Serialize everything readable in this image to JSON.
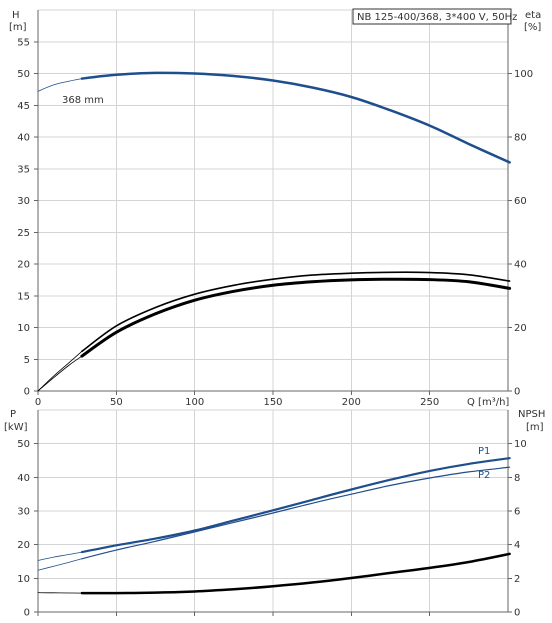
{
  "title": "NB 125-400/368, 3*400 V, 50Hz",
  "chart_data": [
    {
      "type": "line",
      "panel": "head-and-efficiency",
      "title": "NB 125-400/368, 3*400 V, 50Hz",
      "x_axis": {
        "label": "Q [m³/h]",
        "range": [
          0,
          300
        ],
        "ticks": [
          0,
          50,
          100,
          150,
          200,
          250
        ]
      },
      "y_left": {
        "label_top": "H",
        "label_unit": "[m]",
        "range": [
          0,
          60
        ],
        "ticks": [
          0,
          5,
          10,
          15,
          20,
          25,
          30,
          35,
          40,
          45,
          50,
          55
        ]
      },
      "y_right": {
        "label_top": "eta",
        "label_unit": "[%]",
        "range": [
          0,
          120
        ],
        "ticks": [
          0,
          20,
          40,
          60,
          80,
          100
        ]
      },
      "grid": true,
      "series": [
        {
          "name": "368 mm",
          "axis": "left",
          "color": "#1f4e8c",
          "width": 2.5,
          "x": [
            28,
            50,
            75,
            100,
            125,
            150,
            175,
            200,
            225,
            250,
            275,
            301
          ],
          "y": [
            49.2,
            49.8,
            50.1,
            50.0,
            49.6,
            48.9,
            47.8,
            46.3,
            44.2,
            41.8,
            38.9,
            36.0
          ]
        },
        {
          "axis": "left",
          "color": "#1f4e8c",
          "width": 0.8,
          "x": [
            0,
            10,
            20,
            28
          ],
          "y": [
            47.2,
            48.2,
            48.8,
            49.2
          ]
        },
        {
          "axis": "right",
          "color": "#000000",
          "width": 1.6,
          "x": [
            28,
            50,
            75,
            100,
            125,
            150,
            175,
            200,
            225,
            250,
            275,
            301
          ],
          "y": [
            12.5,
            20.5,
            26.3,
            30.5,
            33.3,
            35.2,
            36.5,
            37.1,
            37.4,
            37.3,
            36.6,
            34.6
          ]
        },
        {
          "axis": "right",
          "color": "#000000",
          "width": 3,
          "x": [
            28,
            50,
            75,
            100,
            125,
            150,
            175,
            200,
            225,
            250,
            275,
            301
          ],
          "y": [
            11.0,
            18.5,
            24.3,
            28.6,
            31.4,
            33.3,
            34.4,
            35.0,
            35.2,
            35.1,
            34.4,
            32.3
          ]
        },
        {
          "axis": "right",
          "color": "#000000",
          "width": 0.8,
          "x": [
            0,
            10,
            20,
            28
          ],
          "y": [
            0,
            4.2,
            8.2,
            11.0
          ]
        },
        {
          "axis": "right",
          "color": "#000000",
          "width": 0.8,
          "x": [
            0,
            10,
            20,
            28
          ],
          "y": [
            0,
            4.7,
            9.0,
            12.5
          ]
        }
      ]
    },
    {
      "type": "line",
      "panel": "power-and-npsh",
      "x_axis": {
        "range": [
          0,
          300
        ],
        "ticks": [
          0,
          50,
          100,
          150,
          200,
          250
        ]
      },
      "y_left": {
        "label_top": "P",
        "label_unit": "[kW]",
        "range": [
          0,
          50
        ],
        "ticks": [
          0,
          10,
          20,
          30,
          40,
          50
        ]
      },
      "y_right": {
        "label_top": "NPSH",
        "label_unit": "[m]",
        "range": [
          0,
          10
        ],
        "ticks": [
          0,
          2,
          4,
          6,
          8,
          10
        ]
      },
      "grid": true,
      "series": [
        {
          "name": "P1",
          "axis": "left",
          "color": "#1f4e8c",
          "width": 2.2,
          "x": [
            28,
            50,
            75,
            100,
            125,
            150,
            175,
            200,
            225,
            250,
            275,
            301
          ],
          "y": [
            17.8,
            19.8,
            21.8,
            24.2,
            27.2,
            30.2,
            33.3,
            36.4,
            39.3,
            41.9,
            44.0,
            45.7
          ]
        },
        {
          "name": "P2",
          "axis": "left",
          "color": "#1f4e8c",
          "width": 1.2,
          "x": [
            28,
            50,
            75,
            100,
            125,
            150,
            175,
            200,
            225,
            250,
            275,
            301
          ],
          "y": [
            15.8,
            18.4,
            21.0,
            23.8,
            26.6,
            29.4,
            32.3,
            35.0,
            37.6,
            39.8,
            41.6,
            43.0
          ]
        },
        {
          "axis": "left",
          "color": "#1f4e8c",
          "width": 0.8,
          "x": [
            0,
            10,
            20,
            28
          ],
          "y": [
            15.3,
            16.3,
            17.1,
            17.8
          ]
        },
        {
          "axis": "left",
          "color": "#1f4e8c",
          "width": 0.8,
          "x": [
            0,
            10,
            20,
            28
          ],
          "y": [
            12.4,
            13.6,
            14.8,
            15.8
          ]
        },
        {
          "axis": "right",
          "color": "#000000",
          "width": 2.5,
          "x": [
            28,
            50,
            75,
            100,
            125,
            150,
            175,
            200,
            225,
            250,
            275,
            301
          ],
          "y": [
            1.12,
            1.12,
            1.15,
            1.22,
            1.35,
            1.53,
            1.75,
            2.02,
            2.32,
            2.62,
            2.97,
            3.45
          ]
        },
        {
          "axis": "right",
          "color": "#000000",
          "width": 0.8,
          "x": [
            0,
            10,
            20,
            28
          ],
          "y": [
            1.15,
            1.14,
            1.13,
            1.12
          ]
        }
      ]
    }
  ]
}
